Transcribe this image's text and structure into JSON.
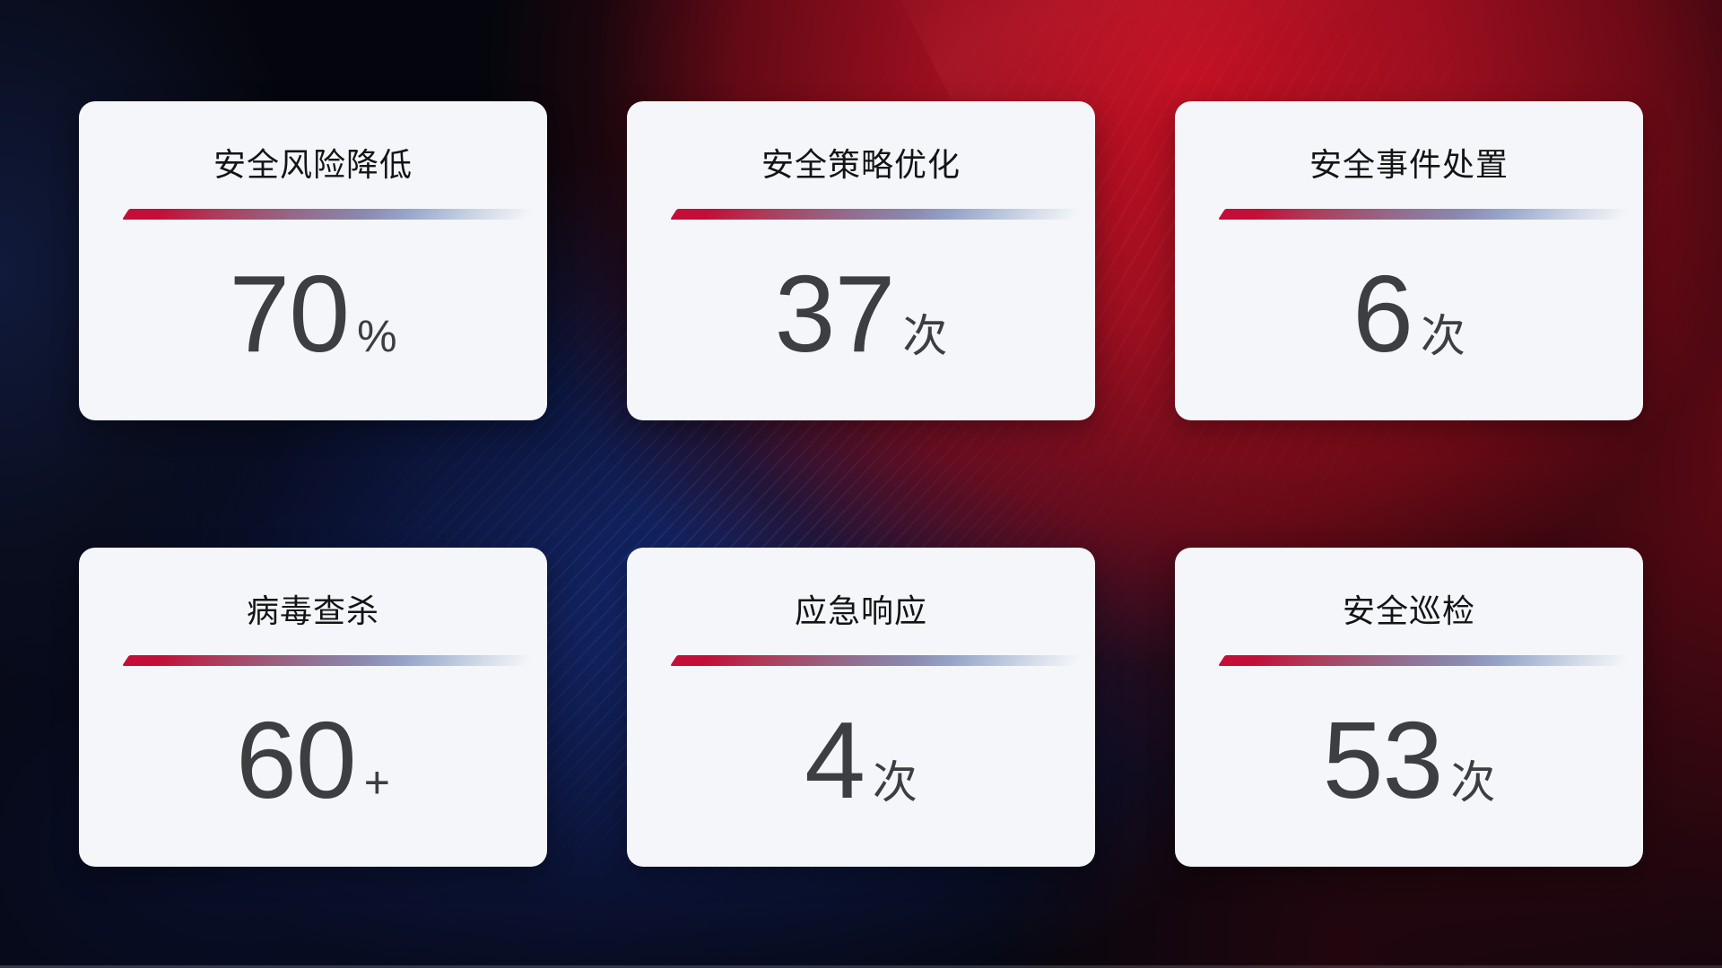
{
  "cards": [
    {
      "title": "安全风险降低",
      "value": "70",
      "unit": "%"
    },
    {
      "title": "安全策略优化",
      "value": "37",
      "unit": "次"
    },
    {
      "title": "安全事件处置",
      "value": "6",
      "unit": "次"
    },
    {
      "title": "病毒查杀",
      "value": "60",
      "unit": "+"
    },
    {
      "title": "应急响应",
      "value": "4",
      "unit": "次"
    },
    {
      "title": "安全巡检",
      "value": "53",
      "unit": "次"
    }
  ],
  "colors": {
    "card_background": "#f4f6f9",
    "title_text": "#131415",
    "value_text": "#3d3e42",
    "divider_gradient_start": "#c30e38",
    "divider_gradient_mid": "#8f7699",
    "divider_gradient_end": "#d5dce9",
    "background_red_glow": "#c11023",
    "background_maroon": "#7a0a16",
    "background_blue_glow": "#15296f",
    "background_base": "#05060d"
  }
}
